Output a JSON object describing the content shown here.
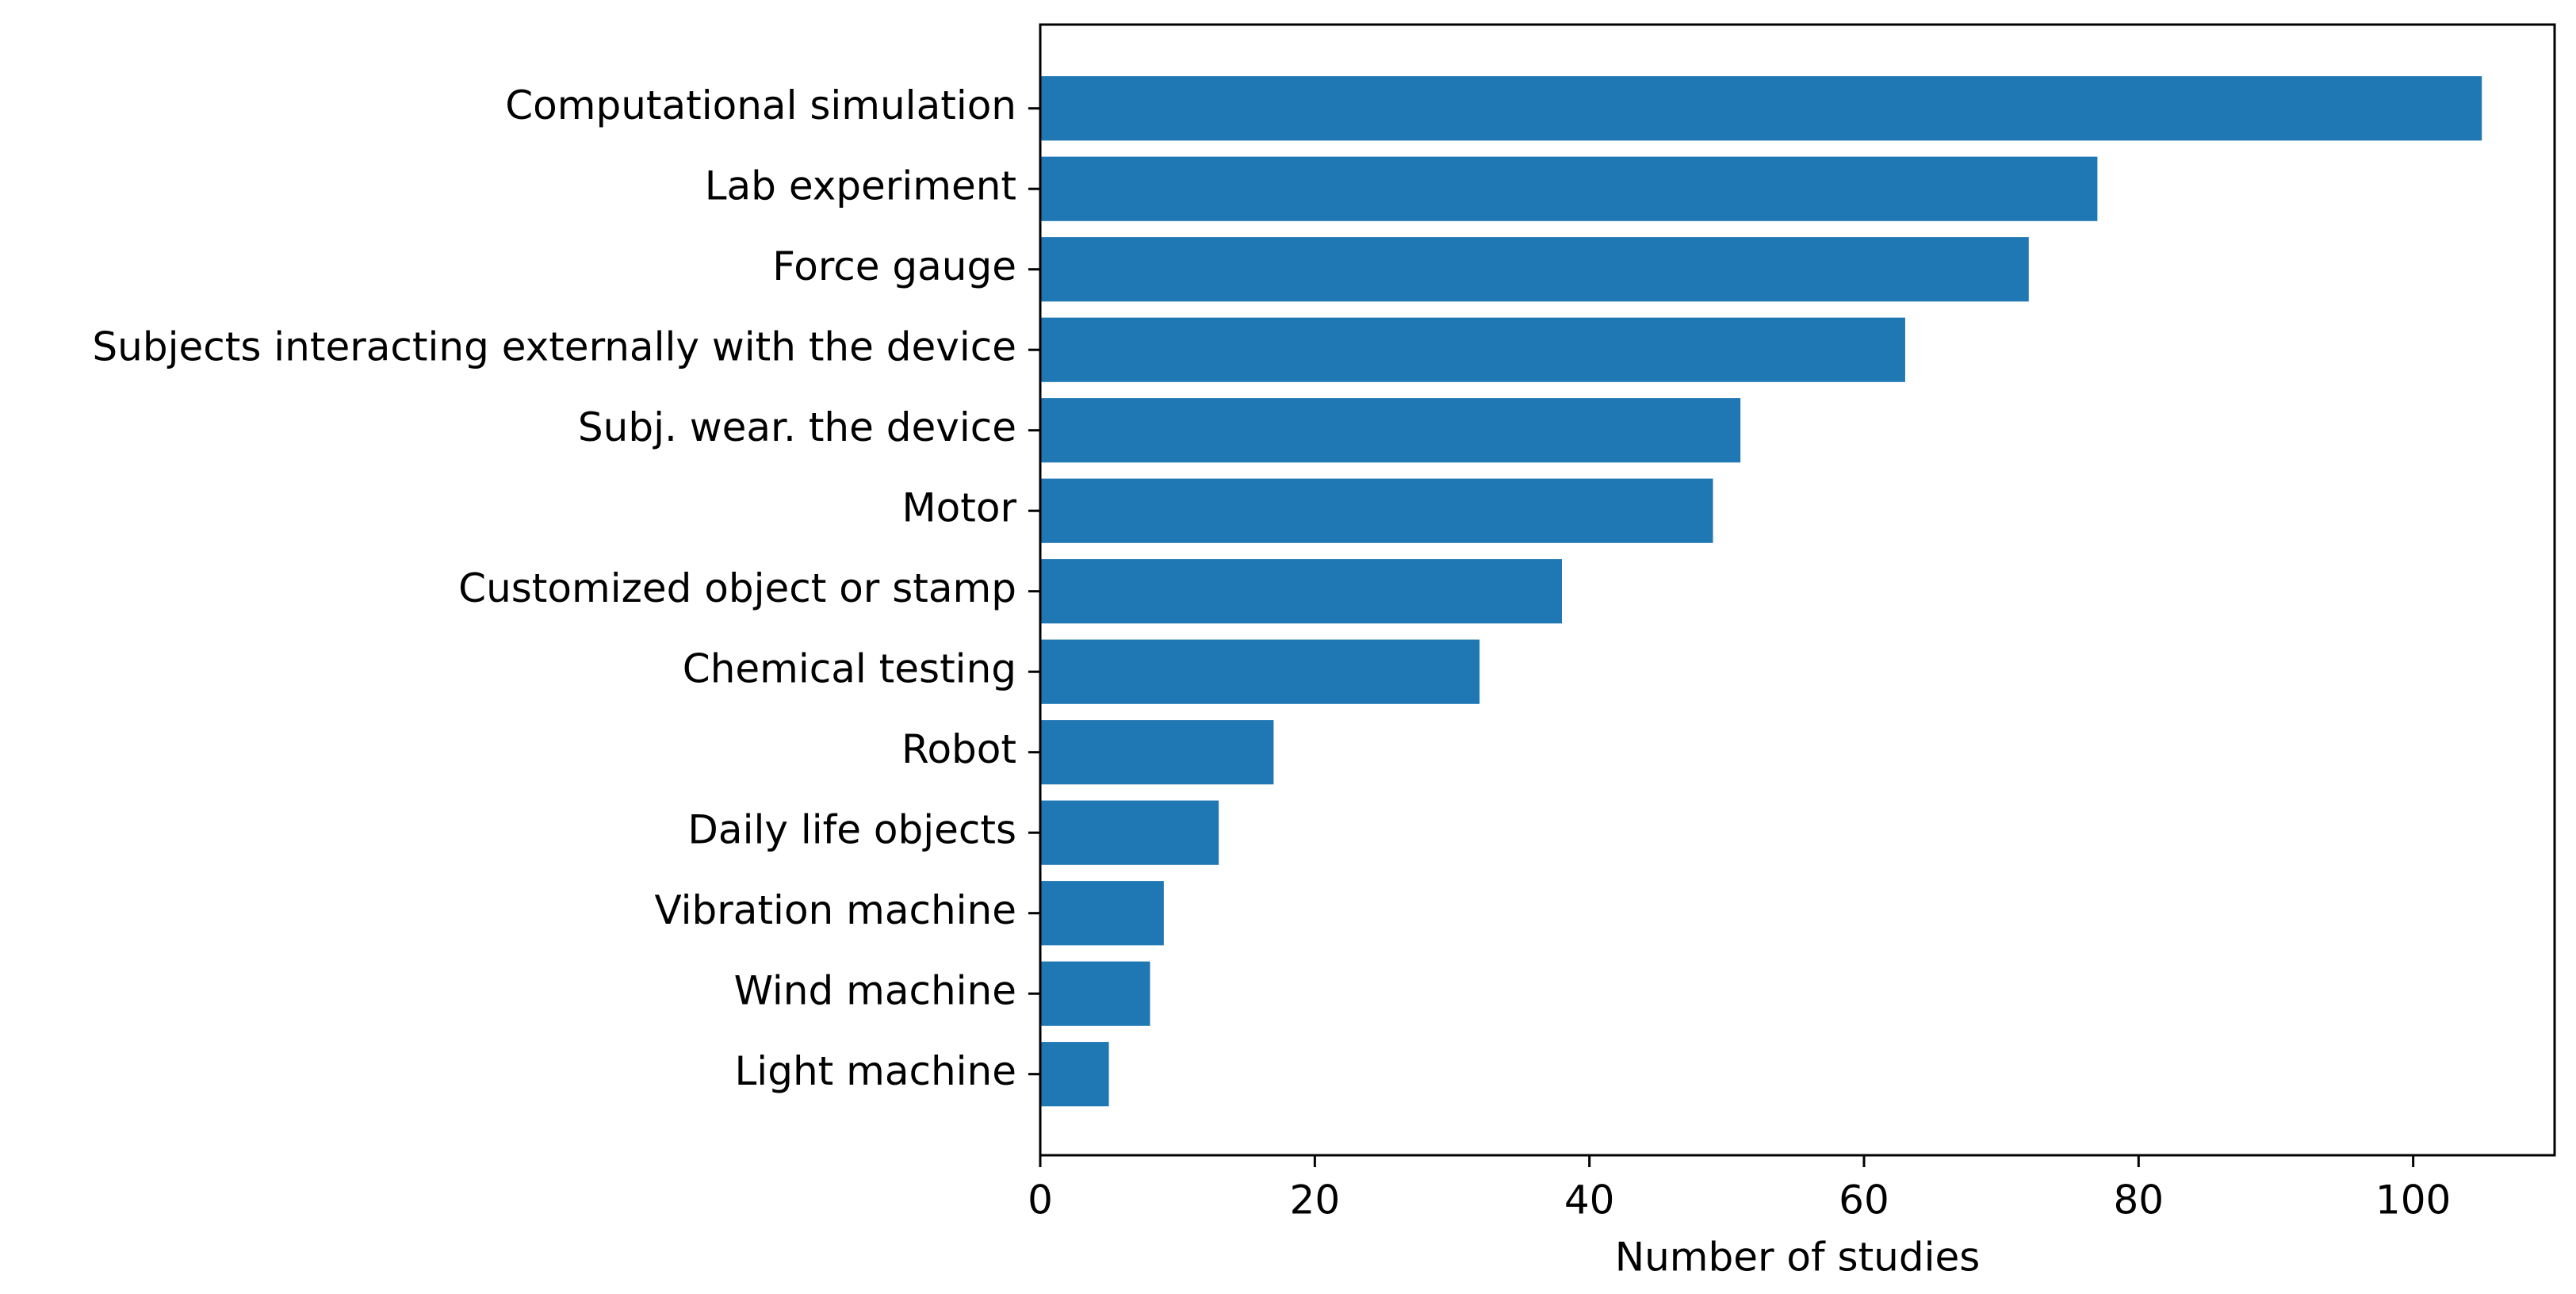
{
  "chart_data": {
    "type": "hbar",
    "x_label": "Number of studies",
    "categories": [
      "Computational simulation",
      "Lab experiment",
      "Force gauge",
      "Subjects interacting externally with the device",
      "Subj. wear. the device",
      "Motor",
      "Customized object or stamp",
      "Chemical testing",
      "Robot",
      "Daily life objects",
      "Vibration machine",
      "Wind machine",
      "Light machine"
    ],
    "values": [
      105,
      77,
      72,
      63,
      51,
      49,
      38,
      32,
      17,
      13,
      9,
      8,
      5
    ],
    "color": "#1f77b4",
    "xlim": [
      0,
      110.3
    ],
    "xticks": [
      0,
      20,
      40,
      60,
      80,
      100
    ],
    "grid": false
  }
}
